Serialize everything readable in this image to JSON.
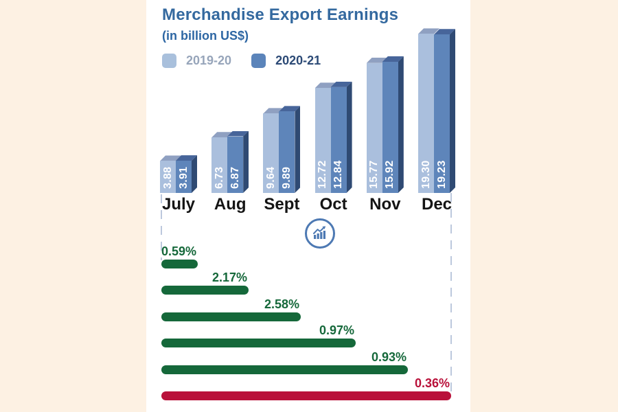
{
  "page": {
    "background_color": "#fdf1e3",
    "panel_color": "#ffffff"
  },
  "header": {
    "title": "Merchandise Export Earnings",
    "subtitle": "(in billion US$)",
    "title_color": "#34699f"
  },
  "legend": {
    "items": [
      {
        "label": "2019-20",
        "swatch_color": "#a9c0dc",
        "text_color": "#97a5ba"
      },
      {
        "label": "2020-21",
        "swatch_color": "#5b84ba",
        "text_color": "#2c4a76"
      }
    ]
  },
  "icons": {
    "growth_icon": "growth-chart-icon",
    "growth_icon_color": "#4d79b3"
  },
  "chart_data": [
    {
      "type": "bar",
      "title": "Merchandise Export Earnings",
      "subtitle": "(in billion US$)",
      "unit": "billion US$",
      "categories": [
        "July",
        "Aug",
        "Sept",
        "Oct",
        "Nov",
        "Dec"
      ],
      "series": [
        {
          "name": "2019-20",
          "values": [
            3.88,
            6.73,
            9.64,
            12.72,
            15.77,
            19.3
          ],
          "front_color": "#aabfdd",
          "top_color": "#8fa0c1"
        },
        {
          "name": "2020-21",
          "values": [
            3.91,
            6.87,
            9.89,
            12.84,
            15.92,
            19.23
          ],
          "front_color": "#5e85ba",
          "top_color": "#47659a",
          "side_color": "#2f4a73"
        }
      ],
      "value_label_style": "white, rotated 90deg, at bar bottom",
      "legend_position": "top-left",
      "grid": false,
      "ylim": [
        0,
        20
      ],
      "style": "3d-prism bars"
    },
    {
      "type": "bar",
      "orientation": "horizontal",
      "categories": [
        "July",
        "Aug",
        "Sept",
        "Oct",
        "Nov",
        "Dec"
      ],
      "values": [
        0.59,
        2.17,
        2.58,
        0.97,
        0.93,
        0.36
      ],
      "labels": [
        "0.59%",
        "2.17%",
        "2.58%",
        "0.97%",
        "0.93%",
        "0.36%"
      ],
      "bar_colors": [
        "#15683a",
        "#15683a",
        "#15683a",
        "#15683a",
        "#15683a",
        "#b9113a"
      ],
      "label_colors": [
        "#15683a",
        "#15683a",
        "#15683a",
        "#15683a",
        "#15683a",
        "#b9113a"
      ],
      "grid": false,
      "note": "monthly growth rate bars, each ending under its month; final bar highlighted red"
    }
  ]
}
